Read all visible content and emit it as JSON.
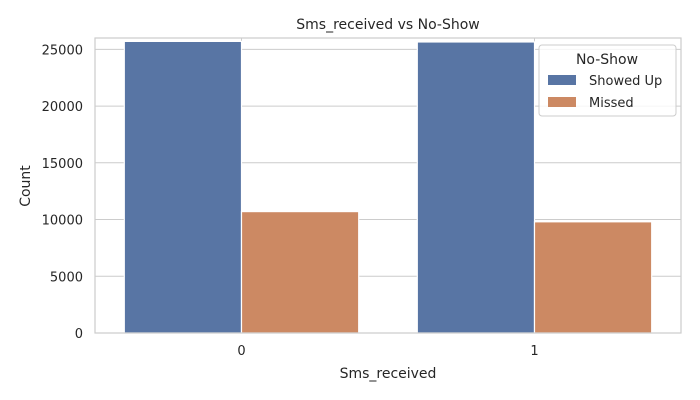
{
  "chart_data": {
    "type": "bar",
    "title": "Sms_received vs No-Show",
    "xlabel": "Sms_received",
    "ylabel": "Count",
    "categories": [
      "0",
      "1"
    ],
    "ylim": [
      0,
      26000
    ],
    "yticks": [
      0,
      5000,
      10000,
      15000,
      20000,
      25000
    ],
    "grid": true,
    "legend": {
      "title": "No-Show",
      "position": "top-right"
    },
    "series": [
      {
        "name": "Showed Up",
        "values": [
          25700,
          25650
        ],
        "color": "#5875a4"
      },
      {
        "name": "Missed",
        "values": [
          10700,
          9800
        ],
        "color": "#cc8963"
      }
    ]
  }
}
